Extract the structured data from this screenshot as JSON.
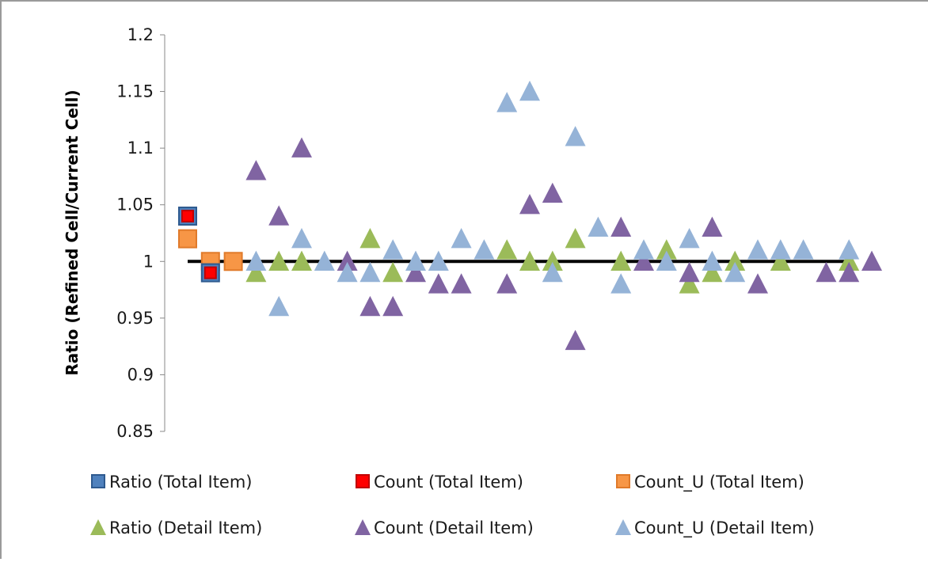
{
  "chart_data": {
    "type": "scatter",
    "title": "",
    "xlabel": "",
    "ylabel": "Ratio (Refined Cell/Current Cell)",
    "ylim": [
      0.85,
      1.2
    ],
    "ytick_labels": [
      "1.2",
      "1.15",
      "1.1",
      "1.05",
      "1",
      "0.95",
      "0.9",
      "0.85"
    ],
    "reference_line": {
      "y": 1,
      "x_from": 1,
      "x_to": 30,
      "color": "#000000"
    },
    "legend_position": "bottom",
    "grid": false,
    "series": [
      {
        "name": "Ratio (Total Item)",
        "marker": "square",
        "color": "#4f81bd",
        "edge": "#2e5a8f",
        "points": [
          [
            1,
            1.04
          ],
          [
            2,
            0.99
          ]
        ]
      },
      {
        "name": "Count (Total Item)",
        "marker": "square",
        "color": "#ff0000",
        "edge": "#c00000",
        "points": [
          [
            1,
            1.04
          ],
          [
            2,
            0.99
          ]
        ]
      },
      {
        "name": "Count_U (Total Item)",
        "marker": "square",
        "color": "#f79646",
        "edge": "#e07a2a",
        "points": [
          [
            1,
            1.02
          ],
          [
            2,
            1.0
          ],
          [
            3,
            1.0
          ]
        ]
      },
      {
        "name": "Ratio (Detail Item)",
        "marker": "triangle",
        "color": "#9bbb59",
        "points": [
          [
            4,
            0.99
          ],
          [
            5,
            1.0
          ],
          [
            6,
            1.0
          ],
          [
            9,
            1.02
          ],
          [
            10,
            0.99
          ],
          [
            15,
            1.01
          ],
          [
            16,
            1.0
          ],
          [
            17,
            1.0
          ],
          [
            18,
            1.02
          ],
          [
            20,
            1.0
          ],
          [
            22,
            1.01
          ],
          [
            23,
            0.98
          ],
          [
            24,
            0.99
          ],
          [
            25,
            1.0
          ],
          [
            27,
            1.0
          ],
          [
            30,
            1.0
          ]
        ]
      },
      {
        "name": "Count (Detail Item)",
        "marker": "triangle",
        "color": "#8064a2",
        "points": [
          [
            4,
            1.08
          ],
          [
            5,
            1.04
          ],
          [
            6,
            1.1
          ],
          [
            8,
            1.0
          ],
          [
            9,
            0.96
          ],
          [
            10,
            0.96
          ],
          [
            11,
            0.99
          ],
          [
            12,
            0.98
          ],
          [
            13,
            0.98
          ],
          [
            15,
            0.98
          ],
          [
            16,
            1.05
          ],
          [
            17,
            1.06
          ],
          [
            18,
            0.93
          ],
          [
            20,
            1.03
          ],
          [
            21,
            1.0
          ],
          [
            23,
            0.99
          ],
          [
            24,
            1.03
          ],
          [
            26,
            0.98
          ],
          [
            29,
            0.99
          ],
          [
            30,
            0.99
          ],
          [
            31,
            1.0
          ]
        ]
      },
      {
        "name": "Count_U (Detail Item)",
        "marker": "triangle",
        "color": "#95b3d7",
        "points": [
          [
            4,
            1.0
          ],
          [
            5,
            0.96
          ],
          [
            6,
            1.02
          ],
          [
            7,
            1.0
          ],
          [
            8,
            0.99
          ],
          [
            9,
            0.99
          ],
          [
            10,
            1.01
          ],
          [
            11,
            1.0
          ],
          [
            12,
            1.0
          ],
          [
            13,
            1.02
          ],
          [
            14,
            1.01
          ],
          [
            15,
            1.14
          ],
          [
            16,
            1.15
          ],
          [
            17,
            0.99
          ],
          [
            18,
            1.11
          ],
          [
            19,
            1.03
          ],
          [
            20,
            0.98
          ],
          [
            21,
            1.01
          ],
          [
            22,
            1.0
          ],
          [
            23,
            1.02
          ],
          [
            24,
            1.0
          ],
          [
            25,
            0.99
          ],
          [
            26,
            1.01
          ],
          [
            27,
            1.01
          ],
          [
            28,
            1.01
          ],
          [
            30,
            1.01
          ]
        ]
      }
    ]
  }
}
